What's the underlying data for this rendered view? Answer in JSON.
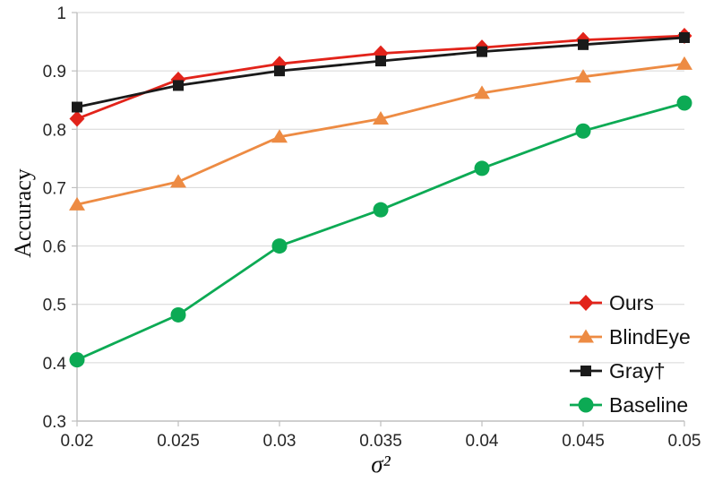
{
  "chart_data": {
    "type": "line",
    "title": "",
    "xlabel": "σ²",
    "ylabel": "Accuracy",
    "x": [
      0.02,
      0.025,
      0.03,
      0.035,
      0.04,
      0.045,
      0.05
    ],
    "xticklabels": [
      "0.02",
      "0.025",
      "0.03",
      "0.035",
      "0.04",
      "0.045",
      "0.05"
    ],
    "ylim": [
      0.3,
      1.0
    ],
    "yticks": [
      0.3,
      0.4,
      0.5,
      0.6,
      0.7,
      0.8,
      0.9,
      1.0
    ],
    "yticklabels": [
      "0.3",
      "0.4",
      "0.5",
      "0.6",
      "0.7",
      "0.8",
      "0.9",
      "1"
    ],
    "grid": true,
    "legend_position": "inside-bottom-right",
    "series": [
      {
        "name": "Ours",
        "marker": "diamond",
        "color": "#e2231a",
        "values": [
          0.818,
          0.885,
          0.912,
          0.93,
          0.94,
          0.953,
          0.96
        ]
      },
      {
        "name": "BlindEye",
        "marker": "triangle",
        "color": "#ed8b43",
        "values": [
          0.671,
          0.71,
          0.787,
          0.818,
          0.862,
          0.89,
          0.912
        ]
      },
      {
        "name": "Gray†",
        "marker": "square",
        "color": "#1a1a1a",
        "values": [
          0.838,
          0.875,
          0.9,
          0.917,
          0.933,
          0.945,
          0.957
        ]
      },
      {
        "name": "Baseline",
        "marker": "circle",
        "color": "#0caa54",
        "values": [
          0.405,
          0.482,
          0.6,
          0.662,
          0.733,
          0.797,
          0.845
        ]
      }
    ],
    "colors": {
      "grid": "#d6d6d6",
      "axis": "#bfbfbf",
      "tick_text": "#262626"
    }
  }
}
